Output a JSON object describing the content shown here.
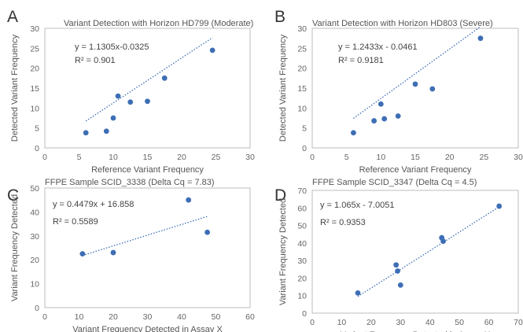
{
  "chart_data": [
    {
      "type": "scatter",
      "panel_letter": "A",
      "title": "Variant Detection with Horizon HD799 (Moderate)",
      "xlabel": "Reference Variant Frequency",
      "ylabel": "Detected Variant Frequency",
      "xlim": [
        0,
        30
      ],
      "ylim": [
        0,
        30
      ],
      "xticks": [
        0,
        5,
        10,
        15,
        20,
        25,
        30
      ],
      "yticks": [
        0,
        5,
        10,
        15,
        20,
        25,
        30
      ],
      "grid": false,
      "x": [
        6,
        9,
        10,
        10.7,
        12.5,
        15,
        17.5,
        24.5
      ],
      "y": [
        3.8,
        4.2,
        7.5,
        13,
        11.5,
        11.7,
        17.5,
        24.5
      ],
      "trendline": {
        "slope": 1.1305,
        "intercept": -0.0325,
        "x_range": [
          6,
          24.5
        ]
      },
      "equation": "y = 1.1305x-0.0325",
      "r2": "R² = 0.901",
      "marker_color": "#3d6eb5"
    },
    {
      "type": "scatter",
      "panel_letter": "B",
      "title": "Variant Detection with Horizon HD803 (Severe)",
      "xlabel": "Reference Variant Frequency",
      "ylabel": "Detected Variant Frequency",
      "xlim": [
        0,
        30
      ],
      "ylim": [
        0,
        30
      ],
      "xticks": [
        0,
        5,
        10,
        15,
        20,
        25,
        30
      ],
      "yticks": [
        0,
        5,
        10,
        15,
        20,
        25,
        30
      ],
      "grid": false,
      "x": [
        6,
        9,
        10,
        10.5,
        12.5,
        15,
        17.5,
        24.5
      ],
      "y": [
        3.8,
        6.8,
        11,
        7.3,
        8,
        16,
        14.8,
        27.5
      ],
      "trendline": {
        "slope": 1.2433,
        "intercept": -0.0461,
        "x_range": [
          6,
          24.5
        ]
      },
      "equation": "y = 1.2433x - 0.0461",
      "r2": "R² = 0.9181",
      "marker_color": "#3d6eb5"
    },
    {
      "type": "scatter",
      "panel_letter": "C",
      "title": "FFPE Sample SCID_3338 (Delta Cq = 7.83)",
      "xlabel": "Variant Frequency Detected in Assay X",
      "ylabel": "Variant Frequency Detected",
      "xlim": [
        0,
        60
      ],
      "ylim": [
        0,
        50
      ],
      "xticks": [
        0,
        10,
        20,
        30,
        40,
        50,
        60
      ],
      "yticks": [
        0,
        10,
        20,
        30,
        40,
        50
      ],
      "grid": false,
      "x": [
        11,
        20,
        42,
        47.5
      ],
      "y": [
        22.5,
        23,
        45,
        31.5
      ],
      "trendline": {
        "slope": 0.4479,
        "intercept": 16.858,
        "x_range": [
          11,
          47.5
        ]
      },
      "equation": "y = 0.4479x  + 16.858",
      "r2": "R² = 0.5589",
      "marker_color": "#3d6eb5"
    },
    {
      "type": "scatter",
      "panel_letter": "D",
      "title": "FFPE Sample SCID_3347 (Delta Cq = 4.5)",
      "xlabel": "Variant Frequency Detected in Assay X",
      "ylabel": "Variant Frequency Detected",
      "xlim": [
        0,
        70
      ],
      "ylim": [
        0,
        70
      ],
      "xticks": [
        0,
        10,
        20,
        30,
        40,
        50,
        60,
        70
      ],
      "yticks": [
        0,
        10,
        20,
        30,
        40,
        50,
        60,
        70
      ],
      "grid": false,
      "x": [
        15.5,
        28.5,
        29,
        30,
        44,
        44.5,
        63.5
      ],
      "y": [
        11.5,
        27.5,
        24,
        16,
        43,
        41,
        61
      ],
      "trendline": {
        "slope": 1.065,
        "intercept": -7.0051,
        "x_range": [
          15.5,
          63.5
        ]
      },
      "equation": "y = 1.065x - 7.0051",
      "r2": "R² = 0.9353",
      "marker_color": "#3d6eb5"
    }
  ]
}
